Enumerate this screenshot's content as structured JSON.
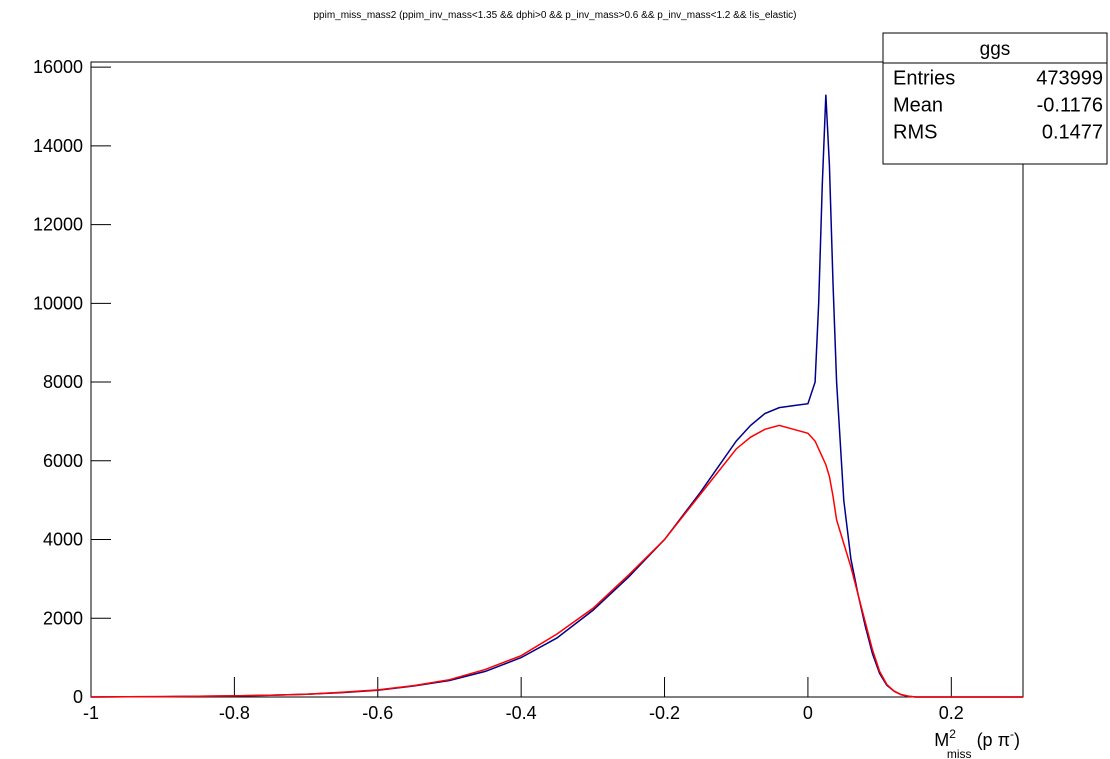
{
  "chart_data": {
    "type": "line",
    "title": "ppim_miss_mass2 (ppim_inv_mass<1.35 && dphi>0 && p_inv_mass>0.6 && p_inv_mass<1.2 && !is_elastic)",
    "x_label": [
      {
        "text": "M"
      },
      {
        "text": "2",
        "shift": "sup"
      },
      {
        "text": "miss",
        "shift": "sub"
      },
      {
        "text": " (p π"
      },
      {
        "text": "-",
        "shift": "sup"
      },
      {
        "text": ")"
      }
    ],
    "x": [
      -1,
      -0.95,
      -0.9,
      -0.85,
      -0.8,
      -0.75,
      -0.7,
      -0.65,
      -0.6,
      -0.55,
      -0.5,
      -0.45,
      -0.4,
      -0.35,
      -0.3,
      -0.25,
      -0.2,
      -0.15,
      -0.1,
      -0.08,
      -0.06,
      -0.04,
      -0.02,
      0,
      0.01,
      0.015,
      0.02,
      0.025,
      0.03,
      0.035,
      0.04,
      0.05,
      0.06,
      0.07,
      0.08,
      0.09,
      0.1,
      0.11,
      0.12,
      0.13,
      0.14,
      0.15,
      0.2,
      0.25,
      0.3
    ],
    "series": [
      {
        "color": "#00008b",
        "values": [
          0,
          5,
          10,
          20,
          30,
          45,
          70,
          110,
          170,
          280,
          420,
          650,
          1000,
          1500,
          2200,
          3050,
          4000,
          5200,
          6500,
          6900,
          7200,
          7350,
          7400,
          7450,
          8000,
          10000,
          13000,
          15300,
          13500,
          10500,
          8000,
          5000,
          3500,
          2600,
          1800,
          1100,
          600,
          300,
          150,
          60,
          20,
          0,
          0,
          0,
          0
        ]
      },
      {
        "color": "#ff0000",
        "values": [
          0,
          5,
          10,
          20,
          30,
          45,
          70,
          120,
          180,
          290,
          440,
          700,
          1050,
          1600,
          2250,
          3100,
          4000,
          5150,
          6300,
          6600,
          6800,
          6900,
          6800,
          6700,
          6500,
          6300,
          6100,
          5900,
          5600,
          5100,
          4500,
          3900,
          3300,
          2600,
          1900,
          1200,
          650,
          320,
          150,
          60,
          20,
          0,
          0,
          0,
          0
        ]
      }
    ],
    "xlim": [
      -1,
      0.3
    ],
    "ylim": [
      0,
      16130
    ],
    "xticks": [
      -1,
      -0.8,
      -0.6,
      -0.4,
      -0.2,
      0,
      0.2
    ],
    "yticks": [
      0,
      2000,
      4000,
      6000,
      8000,
      10000,
      12000,
      14000,
      16000
    ],
    "stats": {
      "title": "ggs",
      "rows": [
        [
          "Entries",
          "473999"
        ],
        [
          "Mean",
          "-0.1176"
        ],
        [
          "RMS",
          "0.1477"
        ]
      ]
    }
  }
}
